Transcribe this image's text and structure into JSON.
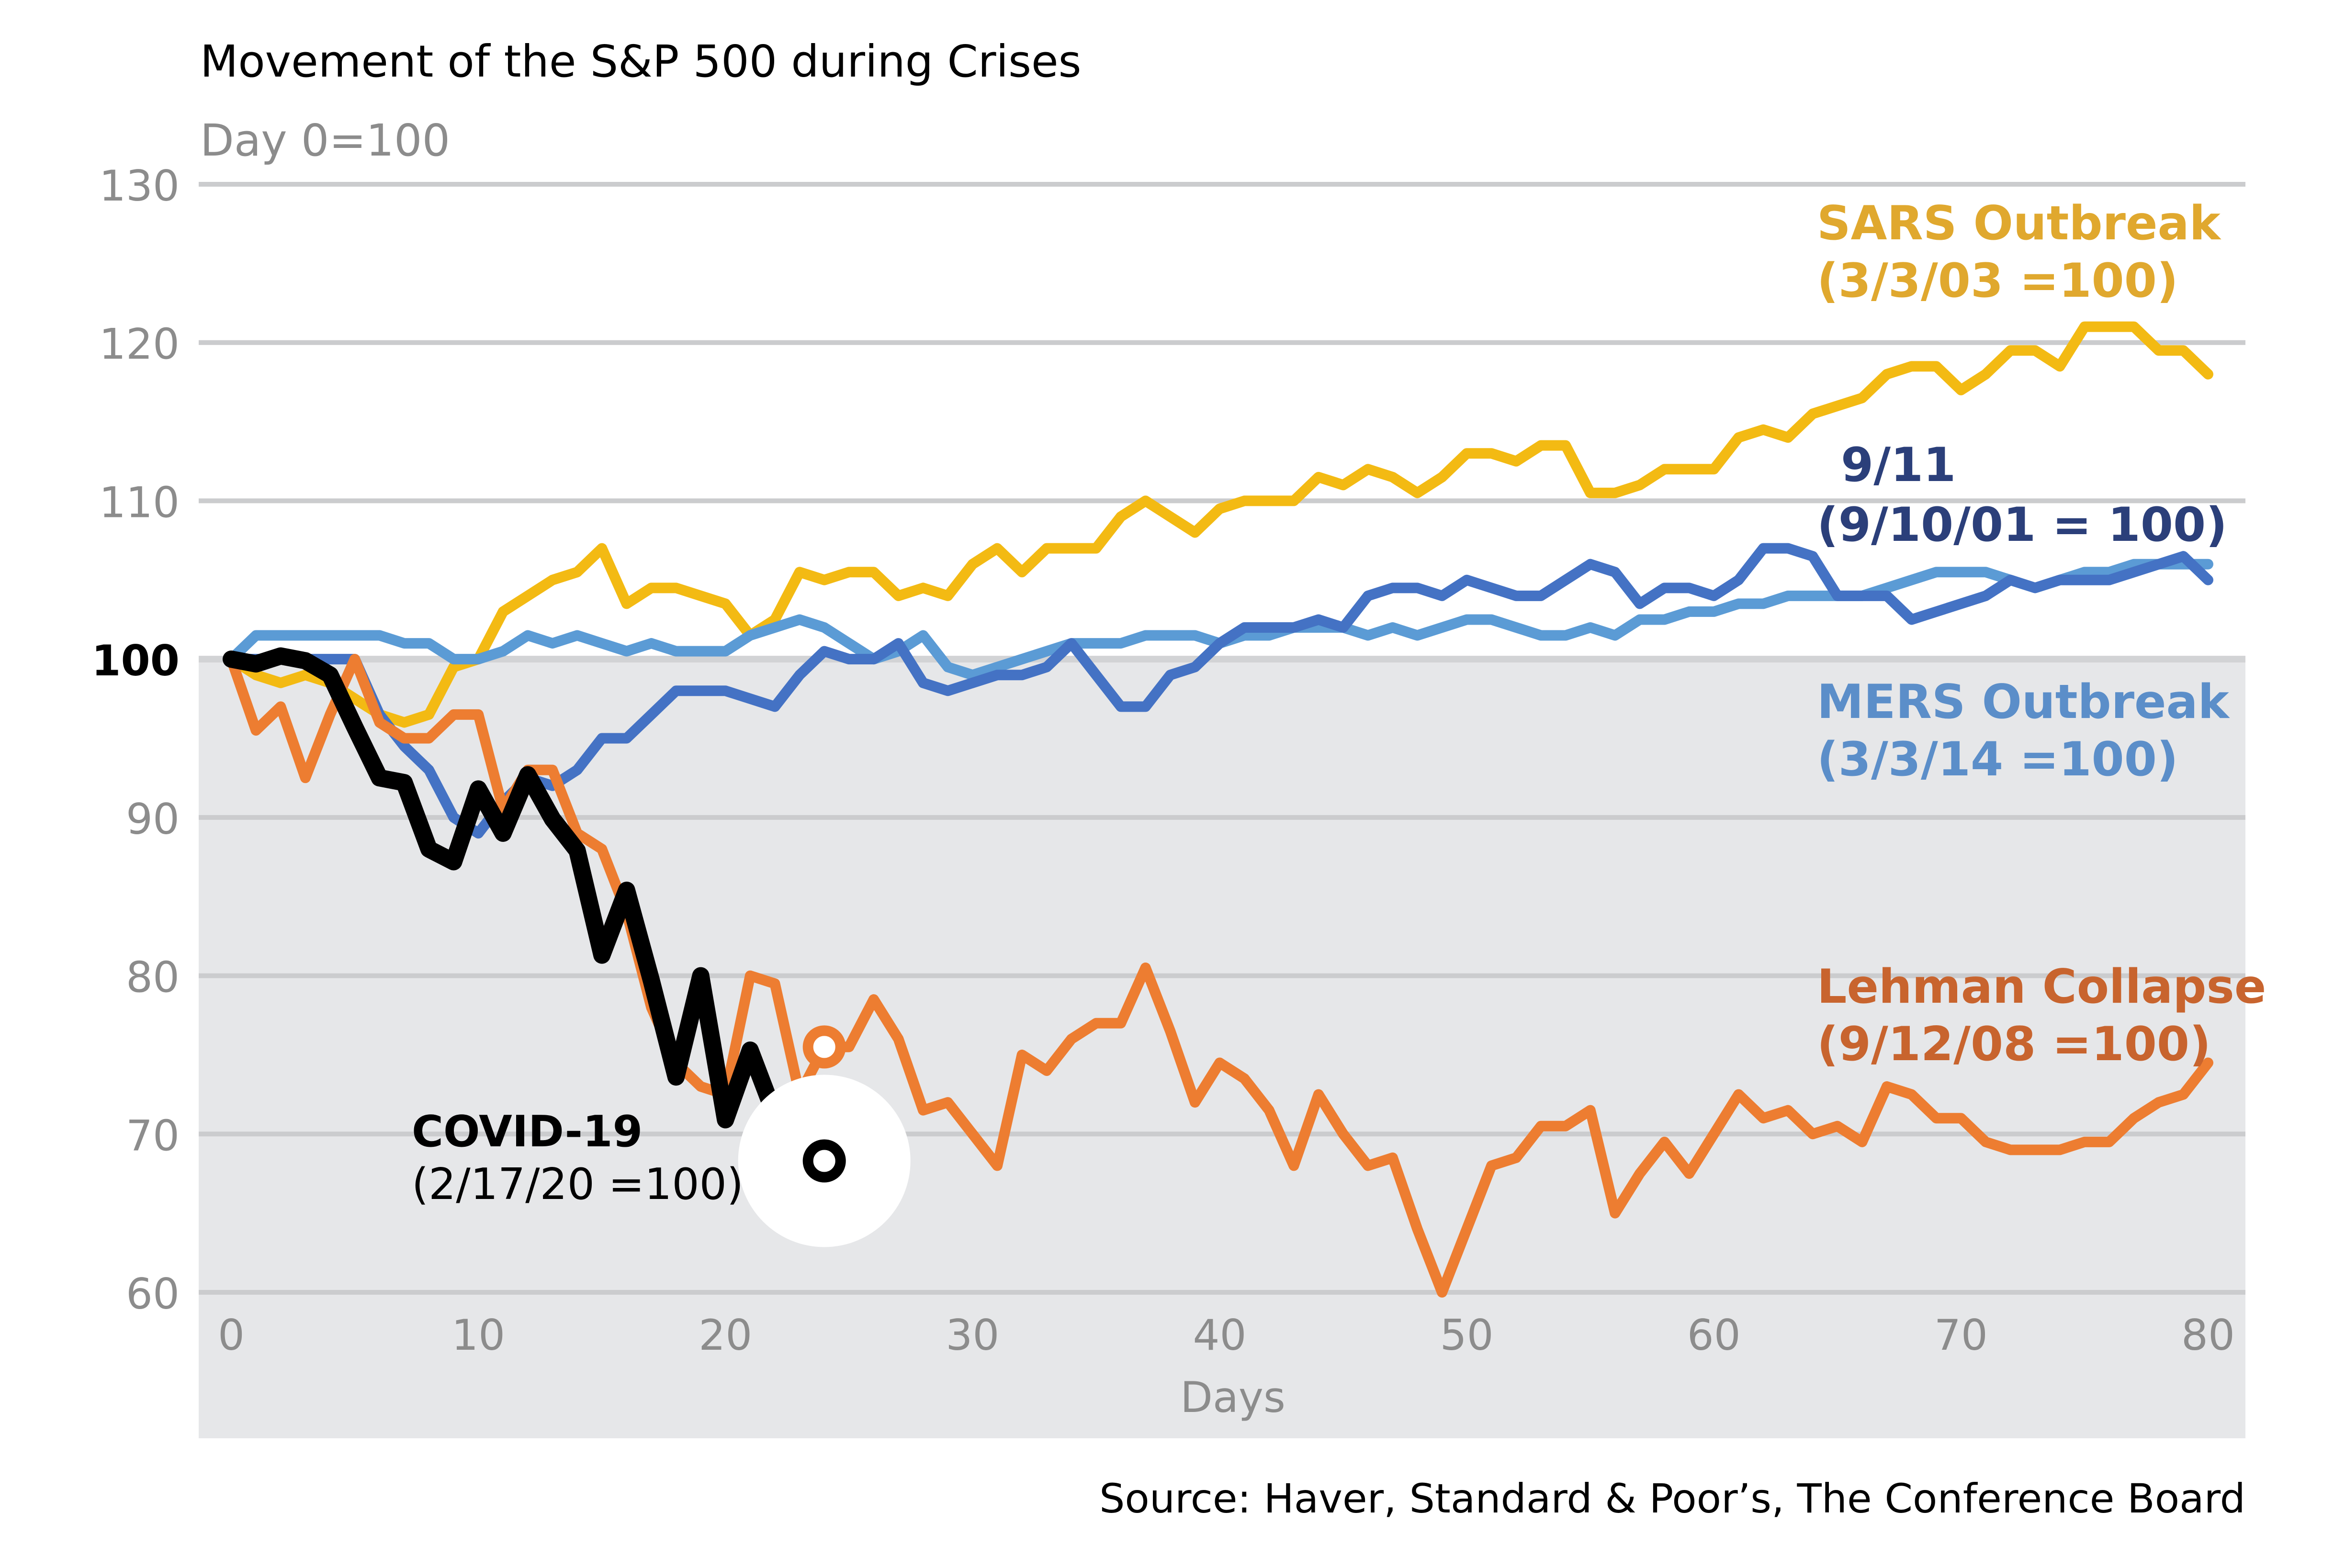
{
  "chart_data": {
    "type": "line",
    "title": "Movement of the S&P 500 during Crises",
    "subtitle": "Day 0=100",
    "xlabel": "Days",
    "ylabel": "",
    "xlim": [
      0,
      80
    ],
    "ylim": [
      60,
      130
    ],
    "x_ticks": [
      "0",
      "10",
      "20",
      "30",
      "40",
      "50",
      "60",
      "70",
      "80"
    ],
    "y_ticks": [
      "60",
      "70",
      "80",
      "90",
      "100",
      "110",
      "120",
      "130"
    ],
    "grid": true,
    "shaded_below": 100,
    "source": "Source: Haver, Standard & Poor’s, The Conference Board",
    "series": [
      {
        "key": "sars",
        "label": "SARS Outbreak",
        "label2": "(3/3/03 =100)",
        "color": "#F3BA13",
        "text_color": "#E0A82E",
        "values": [
          100,
          99,
          98.5,
          99,
          98.5,
          97.5,
          96.5,
          96,
          96.5,
          99.5,
          100,
          103,
          104,
          105,
          105.5,
          107,
          103.5,
          104.5,
          104.5,
          104,
          103.5,
          101.5,
          102.5,
          105.5,
          105,
          105.5,
          105.5,
          104,
          104.5,
          104,
          106,
          107,
          105.5,
          107,
          107,
          107,
          109,
          110,
          109,
          108,
          109.5,
          110,
          110,
          110,
          111.5,
          111,
          112,
          111.5,
          110.5,
          111.5,
          113,
          113,
          112.5,
          113.5,
          113.5,
          110.5,
          110.5,
          111,
          112,
          112,
          112,
          114,
          114.5,
          114,
          115.5,
          116,
          116.5,
          118,
          118.5,
          118.5,
          117,
          118,
          119.5,
          119.5,
          118.5,
          121,
          121,
          121,
          119.5,
          119.5,
          118
        ]
      },
      {
        "key": "nine11",
        "label": "9/11",
        "label2": "(9/10/01 = 100)",
        "color": "#4472C4",
        "text_color": "#2B3F7A",
        "values": [
          100,
          100,
          100,
          100,
          100,
          100,
          96.5,
          94.5,
          93,
          90,
          89,
          91,
          92.5,
          92,
          93,
          95,
          95,
          96.5,
          98,
          98,
          98,
          97.5,
          97,
          99,
          100.5,
          100,
          100,
          101,
          98.5,
          98,
          98.5,
          99,
          99,
          99.5,
          101,
          99,
          97,
          97,
          99,
          99.5,
          101,
          102,
          102,
          102,
          102.5,
          102,
          104,
          104.5,
          104.5,
          104,
          105,
          104.5,
          104,
          104,
          105,
          106,
          105.5,
          103.5,
          104.5,
          104.5,
          104,
          105,
          107,
          107,
          106.5,
          104,
          104,
          104,
          102.5,
          103,
          103.5,
          104,
          105,
          104.5,
          105,
          105,
          105,
          105.5,
          106,
          106.5,
          105
        ]
      },
      {
        "key": "mers",
        "label": "MERS Outbreak",
        "label2": "(3/3/14 =100)",
        "color": "#5B9BD5",
        "text_color": "#5B8EC9",
        "values": [
          100,
          101.5,
          101.5,
          101.5,
          101.5,
          101.5,
          101.5,
          101,
          101,
          100,
          100,
          100.5,
          101.5,
          101,
          101.5,
          101,
          100.5,
          101,
          100.5,
          100.5,
          100.5,
          101.5,
          102,
          102.5,
          102,
          101,
          100,
          100.5,
          101.5,
          99.5,
          99,
          99.5,
          100,
          100.5,
          101,
          101,
          101,
          101.5,
          101.5,
          101.5,
          101,
          101.5,
          101.5,
          102,
          102,
          102,
          101.5,
          102,
          101.5,
          102,
          102.5,
          102.5,
          102,
          101.5,
          101.5,
          102,
          101.5,
          102.5,
          102.5,
          103,
          103,
          103.5,
          103.5,
          104,
          104,
          104,
          104,
          104.5,
          105,
          105.5,
          105.5,
          105.5,
          105,
          104.5,
          105,
          105.5,
          105.5,
          106,
          106,
          106,
          106
        ]
      },
      {
        "key": "lehman",
        "label": "Lehman Collapse",
        "label2": "(9/12/08 =100)",
        "color": "#ED7D31",
        "text_color": "#C8642E",
        "values": [
          100,
          95.5,
          97,
          92.5,
          96.5,
          100,
          96,
          95,
          95,
          96.5,
          96.5,
          90.5,
          93,
          93,
          89,
          88,
          84,
          78,
          74.5,
          73,
          72.5,
          80,
          79.5,
          72.5,
          75.5,
          75.5,
          78.5,
          76,
          71.5,
          72,
          70,
          68,
          75,
          74,
          76,
          77,
          77,
          80.5,
          76.5,
          72,
          74.5,
          73.5,
          71.5,
          68,
          72.5,
          70,
          68,
          68.5,
          64,
          60,
          64,
          68,
          68.5,
          70.5,
          70.5,
          71.5,
          65,
          67.5,
          69.5,
          67.5,
          70,
          72.5,
          71,
          71.5,
          70,
          70.5,
          69.5,
          73,
          72.5,
          71,
          71,
          69.5,
          69,
          69,
          69,
          69.5,
          69.5,
          71,
          72,
          72.5,
          74.5
        ]
      },
      {
        "key": "covid",
        "label": "COVID-19",
        "label2": "(2/17/20 =100)",
        "color": "#000000",
        "text_color": "#000000",
        "values": [
          100,
          99.7,
          100.2,
          99.9,
          99,
          95.7,
          92.5,
          92.2,
          88,
          87.2,
          91.8,
          89,
          92.7,
          89.9,
          87.9,
          81.3,
          85.4,
          79.7,
          73.6,
          80,
          70.9,
          75.3,
          71.2,
          71.2,
          68.3
        ]
      }
    ],
    "highlights": [
      {
        "series": "covid",
        "x": 24,
        "y": 68.3
      },
      {
        "series": "lehman",
        "x": 24,
        "y": 75.5
      }
    ]
  }
}
